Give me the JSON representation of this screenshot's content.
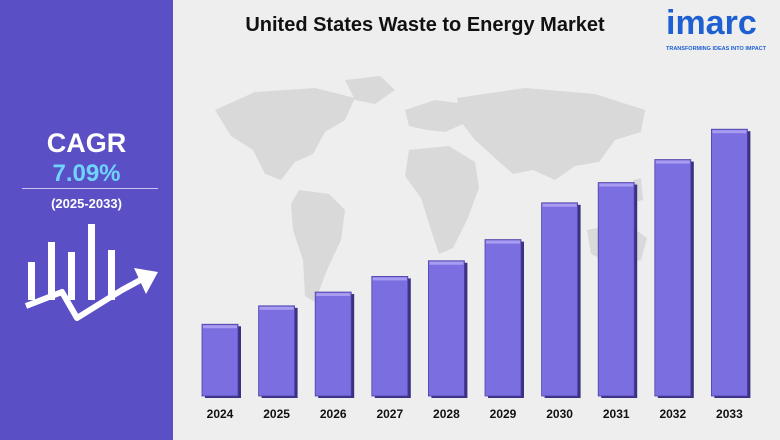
{
  "title": "United States Waste to Energy Market",
  "logo": {
    "word": "imarc",
    "tagline": "TRANSFORMING IDEAS INTO IMPACT"
  },
  "cagr": {
    "label": "CAGR",
    "value": "7.09%",
    "period": "(2025-2033)"
  },
  "colors": {
    "panel": "#5a4fc4",
    "bar": "#7b6ee0",
    "bar_highlight": "#a79cf0",
    "bar_shadow": "#3b3180",
    "cagr_value": "#6fd3ff",
    "brand": "#1e5fd1",
    "map": "#d9d9d9"
  },
  "icons": [
    "bar-trend-icon",
    "world-map-icon"
  ],
  "chart_data": {
    "type": "bar",
    "categories": [
      "2024",
      "2025",
      "2026",
      "2027",
      "2028",
      "2029",
      "2030",
      "2031",
      "2032",
      "2033"
    ],
    "values": [
      78,
      98,
      113,
      130,
      147,
      170,
      210,
      232,
      257,
      290
    ],
    "title": "United States Waste to Energy Market",
    "xlabel": "",
    "ylabel": "",
    "ylim": [
      0,
      300
    ],
    "grid": false,
    "legend": "none"
  }
}
